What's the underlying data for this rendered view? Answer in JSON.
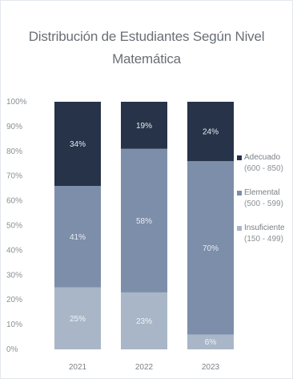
{
  "chart_data": {
    "type": "bar",
    "stacked": true,
    "title_line1": "Distribución de Estudiantes Según Nivel",
    "title_line2": "Matemática",
    "categories": [
      "2021",
      "2022",
      "2023"
    ],
    "ylim": [
      0,
      100
    ],
    "yticks": [
      "0%",
      "10%",
      "20%",
      "30%",
      "40%",
      "50%",
      "60%",
      "70%",
      "80%",
      "90%",
      "100%"
    ],
    "series": [
      {
        "name": "Insuficiente",
        "range": "(150 - 499)",
        "color": "#a9b6c8",
        "label_color": "#f2f4f7",
        "values": [
          25,
          23,
          6
        ],
        "labels": [
          "25%",
          "23%",
          "6%"
        ]
      },
      {
        "name": "Elemental",
        "range": "(500 - 599)",
        "color": "#7c8ea9",
        "label_color": "#e8edf3",
        "values": [
          41,
          58,
          70
        ],
        "labels": [
          "41%",
          "58%",
          "70%"
        ]
      },
      {
        "name": "Adecuado",
        "range": "(600 - 850)",
        "color": "#263349",
        "label_color": "#e9edf2",
        "values": [
          34,
          19,
          24
        ],
        "labels": [
          "34%",
          "19%",
          "24%"
        ]
      }
    ],
    "grid": false,
    "legend_position": "right"
  }
}
